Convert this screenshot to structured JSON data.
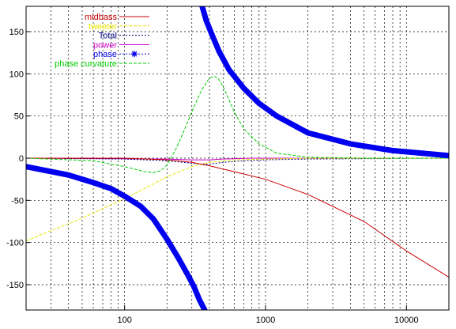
{
  "chart_data": {
    "type": "line",
    "xscale": "log",
    "xlim": [
      20,
      20000
    ],
    "ylim": [
      -180,
      180
    ],
    "grid": true,
    "legend_position": "top-right",
    "xticks": [
      {
        "value": 100,
        "label": "100"
      },
      {
        "value": 1000,
        "label": "1000"
      },
      {
        "value": 10000,
        "label": "10000"
      }
    ],
    "yticks": [
      {
        "value": 150,
        "label": "150"
      },
      {
        "value": 100,
        "label": "100"
      },
      {
        "value": 50,
        "label": "50"
      },
      {
        "value": 0,
        "label": "0"
      },
      {
        "value": -50,
        "label": "-50"
      },
      {
        "value": -100,
        "label": "-100"
      },
      {
        "value": -150,
        "label": "-150"
      }
    ],
    "series": [
      {
        "name": "midbass",
        "color": "#cc0000",
        "style": "solid",
        "x": [
          20,
          100,
          200,
          300,
          400,
          600,
          1000,
          2000,
          5000,
          10000,
          20000
        ],
        "y": [
          0,
          0,
          -2,
          -5,
          -9,
          -16,
          -25,
          -43,
          -75,
          -110,
          -141
        ]
      },
      {
        "name": "tweeter",
        "color": "#e6e600",
        "style": "dashed",
        "x": [
          20,
          50,
          100,
          150,
          200,
          300,
          400,
          600,
          1000,
          2000,
          5000,
          10000,
          20000
        ],
        "y": [
          -98,
          -71,
          -48,
          -33,
          -22,
          -10,
          -5,
          -2,
          -1,
          0,
          0,
          0,
          0
        ]
      },
      {
        "name": "Total",
        "color": "#000080",
        "style": "dotted",
        "x": [
          20,
          100,
          200,
          300,
          350,
          400,
          500,
          700,
          1000,
          2000,
          20000
        ],
        "y": [
          0,
          -1,
          -3,
          -6,
          -7,
          -7,
          -5,
          -3,
          -2,
          -1,
          0
        ]
      },
      {
        "name": "power",
        "color": "#cc00cc",
        "style": "solid",
        "x": [
          20,
          200,
          300,
          350,
          400,
          500,
          800,
          2000,
          20000
        ],
        "y": [
          0,
          -1,
          -2,
          -2,
          -2,
          -1,
          0,
          0,
          0
        ]
      },
      {
        "name": "phase",
        "color": "#0000ee",
        "style": "thick",
        "segments": [
          {
            "x": [
              20,
              40,
              60,
              80,
              100,
              130,
              160,
              200,
              240,
              280,
              310,
              340,
              370
            ],
            "y": [
              -10,
              -20,
              -29,
              -36,
              -45,
              -57,
              -72,
              -96,
              -118,
              -138,
              -152,
              -168,
              -180
            ]
          },
          {
            "x": [
              355,
              380,
              420,
              470,
              550,
              700,
              900,
              1200,
              2000,
              4000,
              8000,
              20000
            ],
            "y": [
              180,
              163,
              145,
              126,
              105,
              83,
              65,
              50,
              30,
              17,
              9,
              3
            ]
          }
        ]
      },
      {
        "name": "phase curvature",
        "color": "#00cc00",
        "style": "dashed",
        "x": [
          20,
          60,
          100,
          140,
          160,
          180,
          200,
          230,
          260,
          300,
          350,
          400,
          430,
          460,
          500,
          600,
          700,
          900,
          1200,
          2000,
          5000,
          20000
        ],
        "y": [
          0,
          -3,
          -10,
          -16,
          -17,
          -15,
          -8,
          10,
          30,
          55,
          80,
          95,
          97,
          95,
          85,
          55,
          35,
          17,
          6,
          1,
          0,
          0
        ]
      }
    ]
  }
}
